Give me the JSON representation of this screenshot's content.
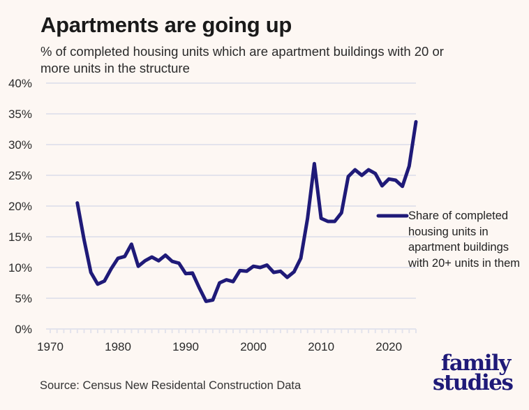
{
  "header": {
    "title": "Apartments are going up",
    "subtitle": "% of completed housing units which are apartment buildings with 20 or more units in the structure"
  },
  "footer": {
    "source": "Source: Census New Residental Construction Data",
    "logo_line1": "family",
    "logo_line2": "studies"
  },
  "colors": {
    "background": "#fdf7f3",
    "series": "#1f1a78",
    "grid": "#e3e3ec"
  },
  "chart_data": {
    "type": "line",
    "title": "Apartments are going up",
    "subtitle": "% of completed housing units which are apartment buildings with 20 or more units in the structure",
    "xlabel": "",
    "ylabel": "",
    "xlim": [
      1970,
      2024
    ],
    "ylim": [
      0,
      40
    ],
    "x_ticks": [
      1970,
      1980,
      1990,
      2000,
      2010,
      2020
    ],
    "x_tick_labels": [
      "1970",
      "1980",
      "1990",
      "2000",
      "2010",
      "2020"
    ],
    "y_ticks": [
      0,
      5,
      10,
      15,
      20,
      25,
      30,
      35,
      40
    ],
    "y_tick_labels": [
      "0%",
      "5%",
      "10%",
      "15%",
      "20%",
      "25%",
      "30%",
      "35%",
      "40%"
    ],
    "grid": true,
    "legend_position": "right",
    "series": [
      {
        "name": "Share of completed housing units in apartment buildings with 20+ units in them",
        "x": [
          1974,
          1975,
          1976,
          1977,
          1978,
          1979,
          1980,
          1981,
          1982,
          1983,
          1984,
          1985,
          1986,
          1987,
          1988,
          1989,
          1990,
          1991,
          1992,
          1993,
          1994,
          1995,
          1996,
          1997,
          1998,
          1999,
          2000,
          2001,
          2002,
          2003,
          2004,
          2005,
          2006,
          2007,
          2008,
          2009,
          2010,
          2011,
          2012,
          2013,
          2014,
          2015,
          2016,
          2017,
          2018,
          2019,
          2020,
          2021,
          2022,
          2023,
          2024
        ],
        "values": [
          20.5,
          14.5,
          9.2,
          7.3,
          7.8,
          9.8,
          11.5,
          11.8,
          13.8,
          10.2,
          11.1,
          11.7,
          11.1,
          12.0,
          11.0,
          10.7,
          9.0,
          9.1,
          6.7,
          4.5,
          4.7,
          7.5,
          8.0,
          7.7,
          9.5,
          9.4,
          10.2,
          10.0,
          10.4,
          9.2,
          9.4,
          8.4,
          9.3,
          11.5,
          18.0,
          26.9,
          18.0,
          17.5,
          17.5,
          18.9,
          24.8,
          25.9,
          25.0,
          25.9,
          25.3,
          23.3,
          24.4,
          24.2,
          23.2,
          26.5,
          33.7
        ]
      }
    ]
  }
}
